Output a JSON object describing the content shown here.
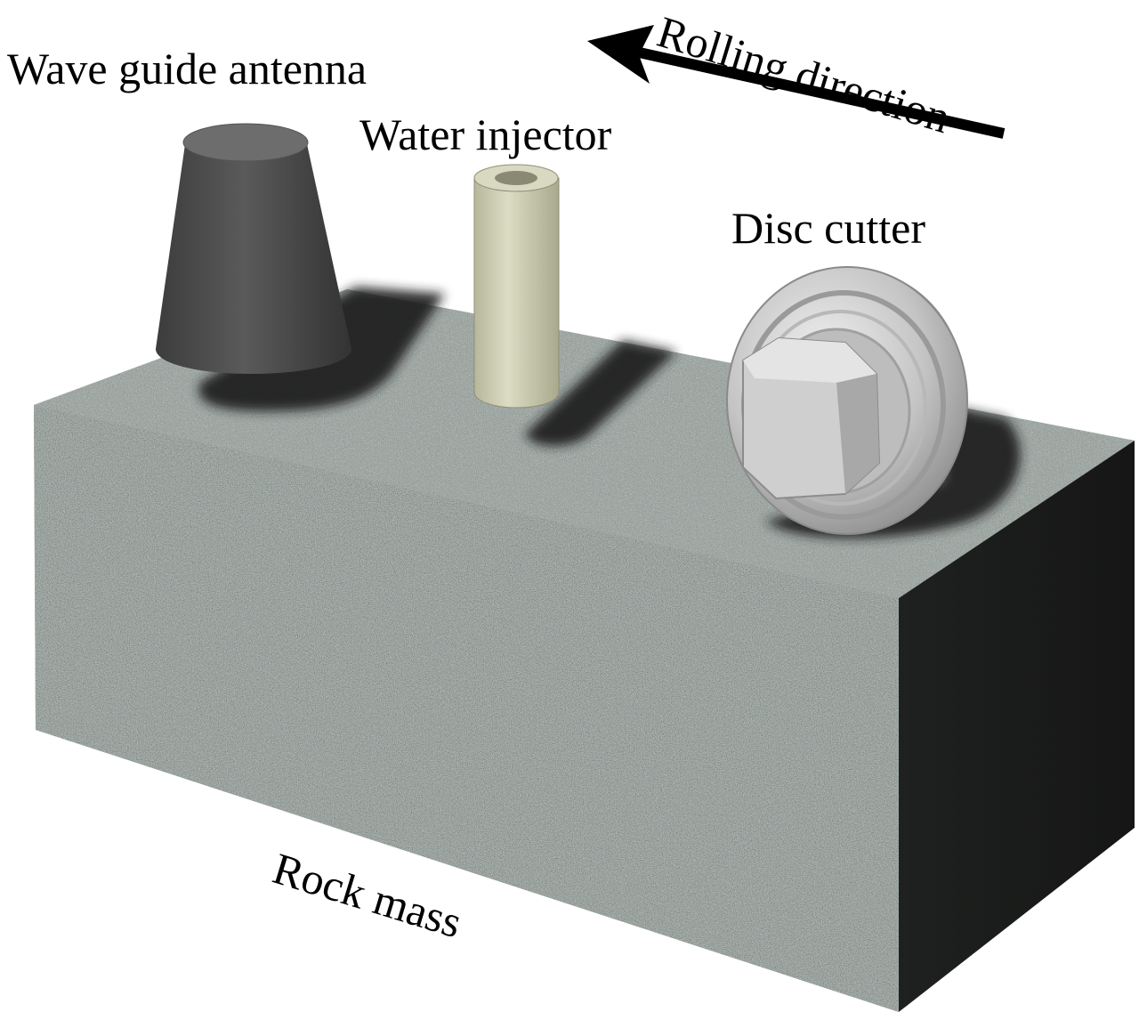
{
  "labels": {
    "wave_guide_antenna": "Wave guide antenna",
    "water_injector": "Water injector",
    "disc_cutter": "Disc cutter",
    "rolling_direction": "Rolling direction",
    "rock_mass": "Rock mass"
  },
  "colors": {
    "background": "#ffffff",
    "rock_texture": "#7e8784",
    "rock_side_face": "#1a1c1b",
    "antenna": "#4a4a4a",
    "injector": "#cfcfb4",
    "disc_cutter": "#c8c8c8",
    "arrow": "#000000",
    "text": "#000000"
  },
  "icons": {
    "arrow": "rolling-direction-arrow-icon"
  }
}
